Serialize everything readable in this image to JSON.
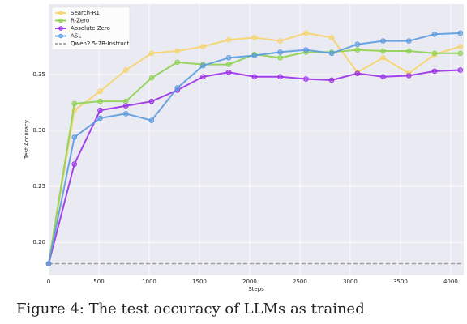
{
  "chart_data": {
    "type": "line",
    "x_label": "Steps",
    "y_label": "Test Accuracy",
    "x": [
      0,
      256,
      512,
      768,
      1024,
      1280,
      1536,
      1792,
      2048,
      2304,
      2560,
      2816,
      3072,
      3328,
      3584,
      3840,
      4096
    ],
    "series": [
      {
        "name": "Search-R1",
        "color": "#f7d46a",
        "values": [
          0.181,
          0.318,
          0.335,
          0.354,
          0.369,
          0.371,
          0.375,
          0.381,
          0.383,
          0.38,
          0.387,
          0.383,
          0.352,
          0.365,
          0.351,
          0.368,
          0.375
        ]
      },
      {
        "name": "R-Zero",
        "color": "#8fd14f",
        "values": [
          0.181,
          0.324,
          0.326,
          0.326,
          0.347,
          0.361,
          0.359,
          0.359,
          0.368,
          0.365,
          0.37,
          0.37,
          0.372,
          0.371,
          0.371,
          0.369,
          0.369
        ]
      },
      {
        "name": "Absolute Zero",
        "color": "#9b30e8",
        "values": [
          0.181,
          0.27,
          0.318,
          0.322,
          0.326,
          0.336,
          0.348,
          0.352,
          0.348,
          0.348,
          0.346,
          0.345,
          0.351,
          0.348,
          0.349,
          0.353,
          0.354
        ]
      },
      {
        "name": "ASL",
        "color": "#5b9be0",
        "values": [
          0.181,
          0.294,
          0.311,
          0.315,
          0.309,
          0.338,
          0.358,
          0.365,
          0.367,
          0.37,
          0.372,
          0.369,
          0.377,
          0.38,
          0.38,
          0.386,
          0.387
        ]
      }
    ],
    "reference_line": {
      "name": "Qwen2.5-7B-Instruct",
      "value": 0.181,
      "color": "#a0a0a0"
    },
    "xlim": [
      0,
      4130
    ],
    "ylim": [
      0.1705,
      0.413
    ],
    "xticks": [
      0,
      500,
      1000,
      1500,
      2000,
      2500,
      3000,
      3500,
      4000
    ],
    "yticks": [
      {
        "value": 0.2,
        "label": "0.20"
      },
      {
        "value": 0.25,
        "label": "0.25"
      },
      {
        "value": 0.3,
        "label": "0.30"
      },
      {
        "value": 0.35,
        "label": "0.35"
      }
    ],
    "grid": true,
    "legend": "upper-left"
  },
  "caption": "Figure 4: The test accuracy of LLMs as trained"
}
